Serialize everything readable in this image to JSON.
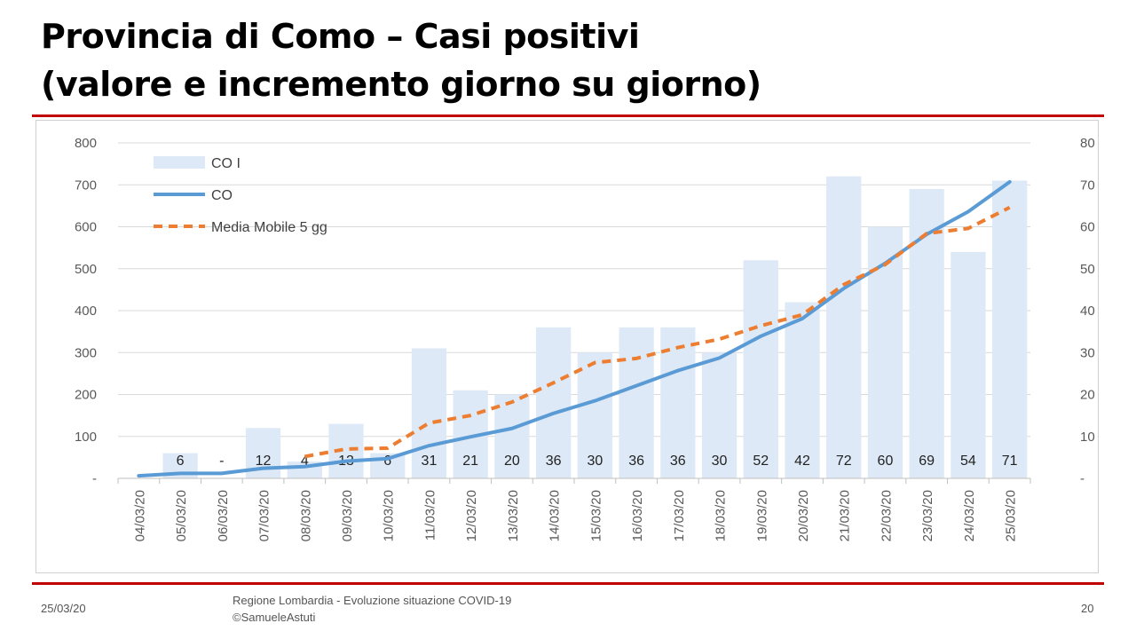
{
  "slide": {
    "title_line1": "Provincia di Como – Casi positivi",
    "title_line2": "(valore e incremento giorno su giorno)",
    "footer_date": "25/03/20",
    "footer_source_line1": "Regione Lombardia - Evoluzione situazione COVID-19",
    "footer_source_line2": "©SamueleAstuti",
    "page_number": "20"
  },
  "chart_data": {
    "type": "bar",
    "categories": [
      "04/03/20",
      "05/03/20",
      "06/03/20",
      "07/03/20",
      "08/03/20",
      "09/03/20",
      "10/03/20",
      "11/03/20",
      "12/03/20",
      "13/03/20",
      "14/03/20",
      "15/03/20",
      "16/03/20",
      "17/03/20",
      "18/03/20",
      "19/03/20",
      "20/03/20",
      "21/03/20",
      "22/03/20",
      "23/03/20",
      "24/03/20",
      "25/03/20"
    ],
    "y_left": {
      "min": 0,
      "max": 800,
      "ticks": [
        0,
        100,
        200,
        300,
        400,
        500,
        600,
        700,
        800
      ],
      "zero_label": "-"
    },
    "y_right": {
      "min": 0,
      "max": 80,
      "ticks": [
        0,
        10,
        20,
        30,
        40,
        50,
        60,
        70,
        80
      ],
      "zero_label": "-"
    },
    "grid": true,
    "legend_position": "top-left",
    "series": [
      {
        "name": "CO I",
        "type": "bar",
        "axis": "right",
        "color": "#dde9f6",
        "values": [
          0,
          6,
          0,
          12,
          4,
          13,
          6,
          31,
          21,
          20,
          36,
          30,
          36,
          36,
          30,
          52,
          42,
          72,
          60,
          69,
          54,
          71
        ],
        "data_labels": [
          "",
          "6",
          "-",
          "12",
          "4",
          "13",
          "6",
          "31",
          "21",
          "20",
          "36",
          "30",
          "36",
          "36",
          "30",
          "52",
          "42",
          "72",
          "60",
          "69",
          "54",
          "71"
        ]
      },
      {
        "name": "CO",
        "type": "line",
        "axis": "left",
        "color": "#5b9bd5",
        "values": [
          6,
          12,
          12,
          24,
          28,
          41,
          47,
          78,
          99,
          119,
          155,
          185,
          221,
          257,
          287,
          339,
          381,
          453,
          513,
          582,
          636,
          707
        ]
      },
      {
        "name": "Media Mobile 5 gg",
        "type": "line",
        "axis": "left",
        "dashed": true,
        "color": "#ed7d31",
        "values": [
          null,
          null,
          null,
          null,
          52,
          70,
          72,
          132,
          150,
          182,
          228,
          276,
          286,
          312,
          332,
          364,
          390,
          462,
          510,
          584,
          596,
          646
        ]
      }
    ]
  }
}
